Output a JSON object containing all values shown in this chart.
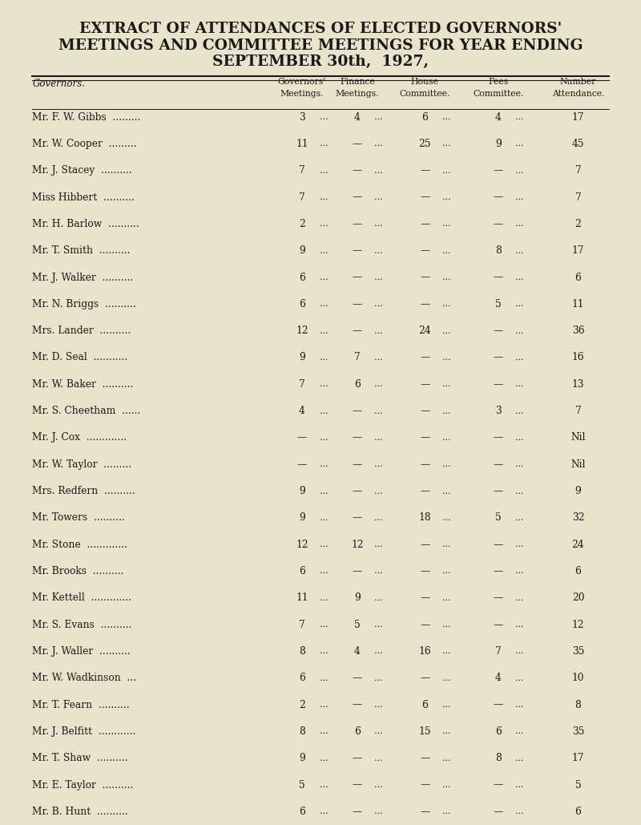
{
  "title_lines": [
    "EXTRACT OF ATTENDANCES OF ELECTED GOVERNORS'",
    "MEETINGS AND COMMITTEE MEETINGS FOR YEAR ENDING",
    "SEPTEMBER 30th,  1927,"
  ],
  "col_headers": [
    "Governors'",
    "Finance",
    "House",
    "Fees",
    "Number"
  ],
  "col_headers2": [
    "Meetings.",
    "Meetings.",
    "Committee.",
    "Committee.",
    "Attendance."
  ],
  "governor_label": "Governors.",
  "background_color": "#e8e4cc",
  "text_color": "#1a1a1a",
  "rows": [
    {
      "name": "Mr. F. W. Gibbs",
      "dots": ".........",
      "gov": "3",
      "fin": "4",
      "house": "6",
      "fees": "4",
      "num": "17"
    },
    {
      "name": "Mr. W. Cooper",
      "dots": ".........",
      "gov": "11",
      "fin": "—",
      "house": "25",
      "fees": "9",
      "num": "45"
    },
    {
      "name": "Mr. J. Stacey",
      "dots": "..........",
      "gov": "7",
      "fin": "—",
      "house": "—",
      "fees": "—",
      "num": "7"
    },
    {
      "name": "Miss Hibbert",
      "dots": "..........",
      "gov": "7",
      "fin": "—",
      "house": "—",
      "fees": "—",
      "num": "7"
    },
    {
      "name": "Mr. H. Barlow",
      "dots": "..........",
      "gov": "2",
      "fin": "—",
      "house": "—",
      "fees": "—",
      "num": "2"
    },
    {
      "name": "Mr. T. Smith",
      "dots": "..........",
      "gov": "9",
      "fin": "—",
      "house": "—",
      "fees": "8",
      "num": "17"
    },
    {
      "name": "Mr. J. Walker",
      "dots": "..........",
      "gov": "6",
      "fin": "—",
      "house": "—",
      "fees": "—",
      "num": "6"
    },
    {
      "name": "Mr. N. Briggs",
      "dots": "..........",
      "gov": "6",
      "fin": "—",
      "house": "—",
      "fees": "5",
      "num": "11"
    },
    {
      "name": "Mrs. Lander",
      "dots": "..........",
      "gov": "12",
      "fin": "—",
      "house": "24",
      "fees": "—",
      "num": "36"
    },
    {
      "name": "Mr. D. Seal",
      "dots": "...........",
      "gov": "9",
      "fin": "7",
      "house": "—",
      "fees": "—",
      "num": "16"
    },
    {
      "name": "Mr. W. Baker",
      "dots": "..........",
      "gov": "7",
      "fin": "6",
      "house": "—",
      "fees": "—",
      "num": "13"
    },
    {
      "name": "Mr. S. Cheetham",
      "dots": "......",
      "gov": "4",
      "fin": "—",
      "house": "—",
      "fees": "3",
      "num": "7"
    },
    {
      "name": "Mr. J. Cox",
      "dots": ".............",
      "gov": "—",
      "fin": "—",
      "house": "—",
      "fees": "—",
      "num": "Nil"
    },
    {
      "name": "Mr. W. Taylor",
      "dots": ".........",
      "gov": "—",
      "fin": "—",
      "house": "—",
      "fees": "—",
      "num": "Nil"
    },
    {
      "name": "Mrs. Redfern",
      "dots": "..........",
      "gov": "9",
      "fin": "—",
      "house": "—",
      "fees": "—",
      "num": "9"
    },
    {
      "name": "Mr. Towers",
      "dots": "..........",
      "gov": "9",
      "fin": "—",
      "house": "18",
      "fees": "5",
      "num": "32"
    },
    {
      "name": "Mr. Stone",
      "dots": ".............",
      "gov": "12",
      "fin": "12",
      "house": "—",
      "fees": "—",
      "num": "24"
    },
    {
      "name": "Mr. Brooks",
      "dots": "..........",
      "gov": "6",
      "fin": "—",
      "house": "—",
      "fees": "—",
      "num": "6"
    },
    {
      "name": "Mr. Kettell",
      "dots": ".............",
      "gov": "11",
      "fin": "9",
      "house": "—",
      "fees": "—",
      "num": "20"
    },
    {
      "name": "Mr. S. Evans",
      "dots": "..........",
      "gov": "7",
      "fin": "5",
      "house": "—",
      "fees": "—",
      "num": "12"
    },
    {
      "name": "Mr. J. Waller",
      "dots": "..........",
      "gov": "8",
      "fin": "4",
      "house": "16",
      "fees": "7",
      "num": "35"
    },
    {
      "name": "Mr. W. Wadkinson",
      "dots": "...",
      "gov": "6",
      "fin": "—",
      "house": "—",
      "fees": "4",
      "num": "10"
    },
    {
      "name": "Mr. T. Fearn",
      "dots": "..........",
      "gov": "2",
      "fin": "—",
      "house": "6",
      "fees": "—",
      "num": "8"
    },
    {
      "name": "Mr. J. Belfitt",
      "dots": "............",
      "gov": "8",
      "fin": "6",
      "house": "15",
      "fees": "6",
      "num": "35"
    },
    {
      "name": "Mr. T. Shaw",
      "dots": "..........",
      "gov": "9",
      "fin": "—",
      "house": "—",
      "fees": "8",
      "num": "17"
    },
    {
      "name": "Mr. E. Taylor",
      "dots": "..........",
      "gov": "5",
      "fin": "—",
      "house": "—",
      "fees": "—",
      "num": "5"
    },
    {
      "name": "Mr. B. Hunt",
      "dots": "..........",
      "gov": "6",
      "fin": "—",
      "house": "—",
      "fees": "—",
      "num": "6"
    }
  ],
  "col_x": {
    "name": 0.03,
    "gov": 0.47,
    "dots_gov": 0.015,
    "fin": 0.56,
    "house": 0.67,
    "fees": 0.79,
    "num": 0.92
  }
}
